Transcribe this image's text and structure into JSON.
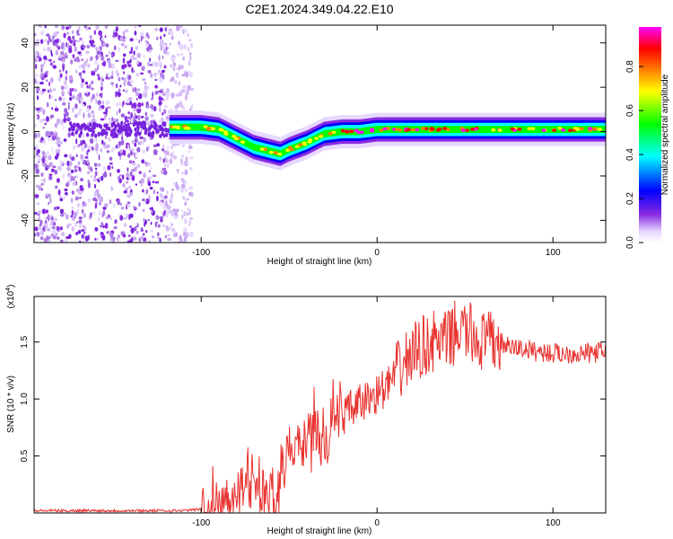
{
  "figure": {
    "title": "C2E1.2024.349.04.22.E10"
  },
  "chart_data": [
    {
      "type": "heatmap",
      "panel": "top",
      "xlabel": "Height of straight line (km)",
      "ylabel": "Frequency (Hz)",
      "xlim": [
        -195,
        130
      ],
      "ylim": [
        -50,
        48
      ],
      "xticks": [
        -100,
        0,
        100
      ],
      "yticks": [
        -40,
        -20,
        0,
        20,
        40
      ],
      "colorbar": {
        "label": "Normalized spectral amplitude",
        "range": [
          0,
          0.98
        ],
        "ticks": [
          0.0,
          0.2,
          0.4,
          0.6,
          0.8
        ],
        "tick_labels": [
          "0.0",
          "0.2",
          "0.4",
          "0.6",
          "0.8"
        ],
        "colormap": [
          "#ffffff",
          "#8a2be2",
          "#0000ff",
          "#00ffff",
          "#00ff00",
          "#ffff00",
          "#ff8000",
          "#ff0000",
          "#ff00ff"
        ]
      },
      "ridge_center_hz": {
        "x": [
          -118,
          -110,
          -100,
          -90,
          -80,
          -70,
          -60,
          -55,
          -50,
          -40,
          -30,
          -20,
          -10,
          0,
          10,
          20,
          30,
          40,
          50,
          60,
          80,
          100,
          130
        ],
        "y": [
          2,
          2,
          2,
          1,
          -3,
          -7,
          -9,
          -10,
          -8,
          -5,
          -1,
          0,
          0,
          1,
          1,
          1,
          1,
          1,
          1,
          1,
          1,
          1,
          1
        ]
      },
      "noise_region_km": [
        -195,
        -115
      ]
    },
    {
      "type": "line",
      "panel": "bottom",
      "xlabel": "Height of straight line (km)",
      "ylabel": "SNR (10 * v/v)",
      "y_multiplier_label": "(x10",
      "y_multiplier_exp": "4",
      "xlim": [
        -195,
        130
      ],
      "ylim": [
        0,
        1.9
      ],
      "xticks": [
        -100,
        0,
        100
      ],
      "yticks": [
        0.5,
        1.0,
        1.5
      ],
      "ytick_labels": [
        "0.5",
        "1.0",
        "1.5"
      ],
      "series": [
        {
          "color": "#e8322e",
          "x": [
            -195,
            -170,
            -150,
            -130,
            -110,
            -95,
            -88,
            -80,
            -75,
            -70,
            -65,
            -60,
            -55,
            -50,
            -45,
            -40,
            -35,
            -30,
            -25,
            -20,
            -15,
            -10,
            -5,
            0,
            5,
            10,
            15,
            20,
            25,
            30,
            35,
            40,
            45,
            50,
            55,
            60,
            65,
            70,
            75,
            80,
            90,
            100,
            110,
            120,
            130
          ],
          "y": [
            0.02,
            0.02,
            0.02,
            0.02,
            0.02,
            0.04,
            0.1,
            0.2,
            0.25,
            0.35,
            0.15,
            0.1,
            0.2,
            0.45,
            0.6,
            0.5,
            0.75,
            0.55,
            0.7,
            0.85,
            0.9,
            0.95,
            1.0,
            1.05,
            1.1,
            1.2,
            1.3,
            1.4,
            1.45,
            1.5,
            1.5,
            1.5,
            1.6,
            1.6,
            1.55,
            1.5,
            1.5,
            1.5,
            1.45,
            1.45,
            1.42,
            1.4,
            1.4,
            1.4,
            1.42
          ]
        }
      ]
    }
  ]
}
